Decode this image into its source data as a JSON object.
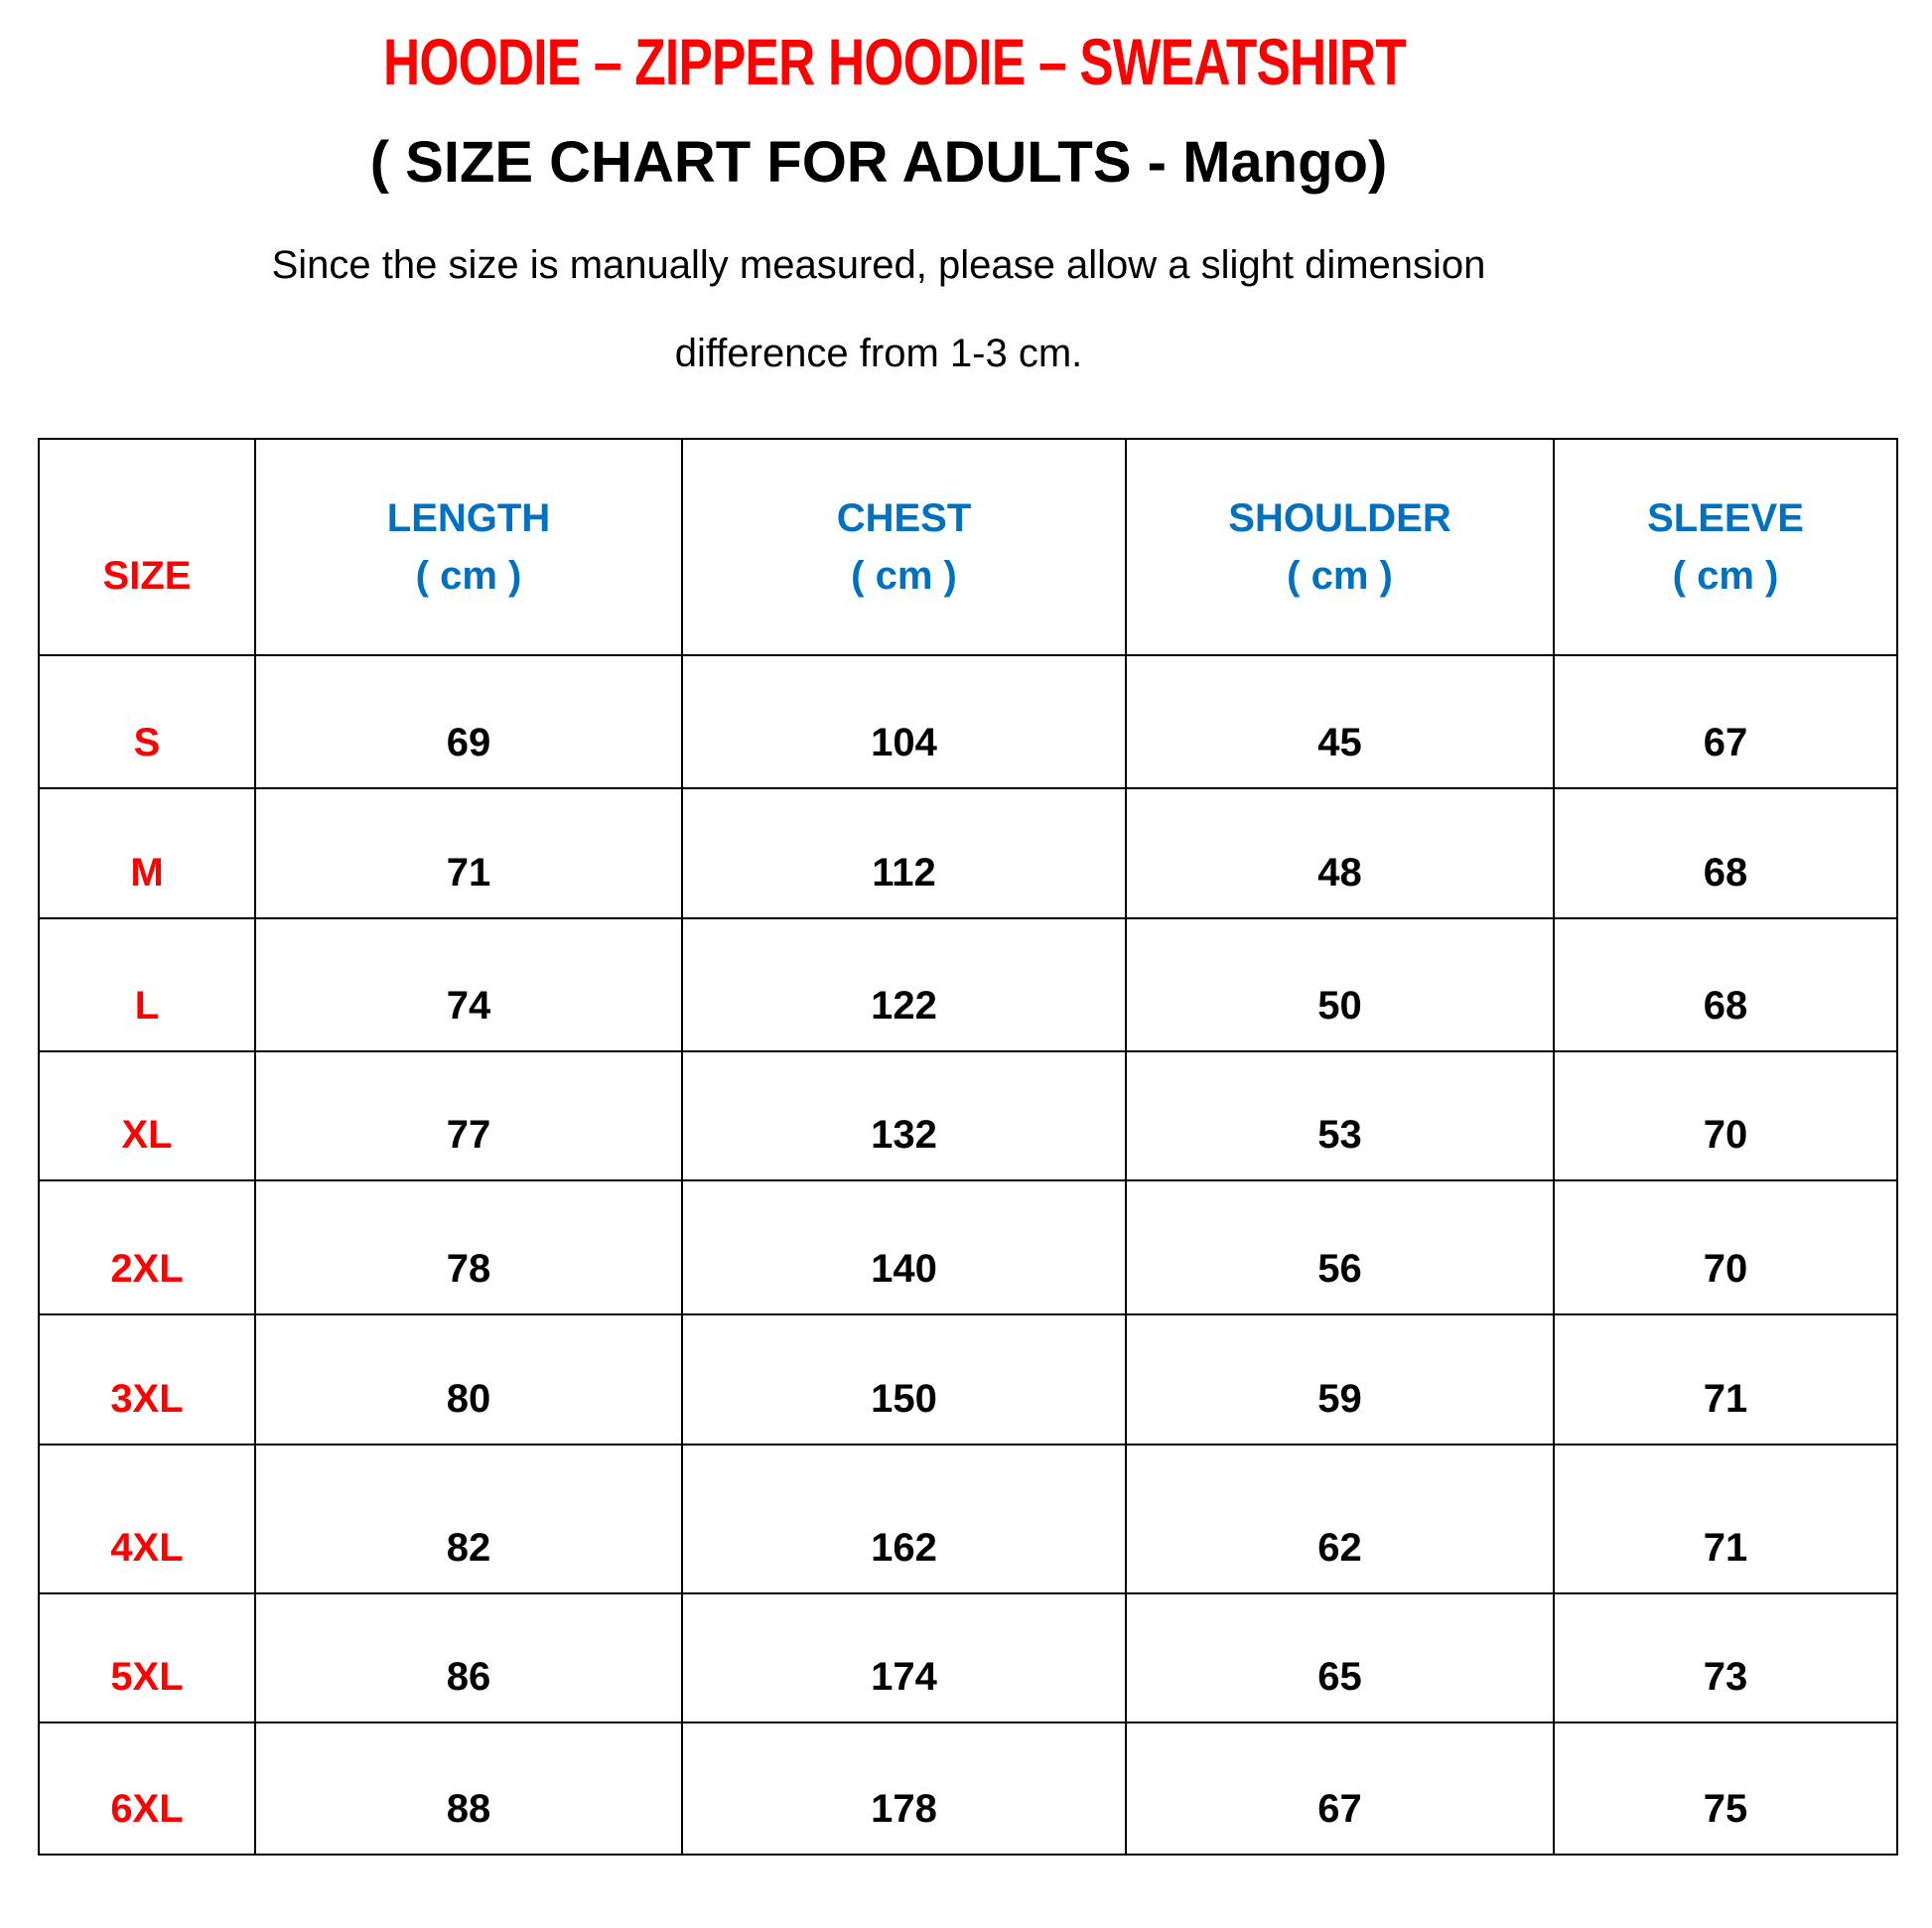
{
  "title": "HOODIE – ZIPPER HOODIE – SWEATSHIRT",
  "subtitle": "( SIZE CHART FOR ADULTS - Mango)",
  "note_line1": "Since the size is manually measured, please allow a slight dimension",
  "note_line2": "difference from 1-3 cm.",
  "colors": {
    "title": "#ff0000",
    "size_labels": "#ff0000",
    "headers": "#0070c0",
    "values": "#000000"
  },
  "table": {
    "headers": [
      {
        "label": "SIZE",
        "unit": ""
      },
      {
        "label": "LENGTH",
        "unit": "( cm )"
      },
      {
        "label": "CHEST",
        "unit": "( cm )"
      },
      {
        "label": "SHOULDER",
        "unit": "( cm )"
      },
      {
        "label": "SLEEVE",
        "unit": "( cm )"
      }
    ],
    "rows": [
      [
        "S",
        "69",
        "104",
        "45",
        "67"
      ],
      [
        "M",
        "71",
        "112",
        "48",
        "68"
      ],
      [
        "L",
        "74",
        "122",
        "50",
        "68"
      ],
      [
        "XL",
        "77",
        "132",
        "53",
        "70"
      ],
      [
        "2XL",
        "78",
        "140",
        "56",
        "70"
      ],
      [
        "3XL",
        "80",
        "150",
        "59",
        "71"
      ],
      [
        "4XL",
        "82",
        "162",
        "62",
        "71"
      ],
      [
        "5XL",
        "86",
        "174",
        "65",
        "73"
      ],
      [
        "6XL",
        "88",
        "178",
        "67",
        "75"
      ]
    ]
  }
}
